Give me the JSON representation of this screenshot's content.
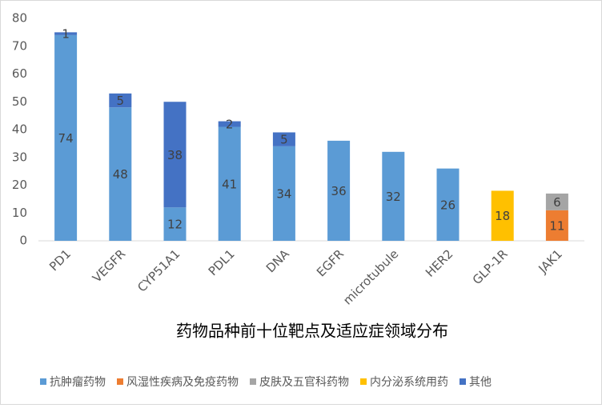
{
  "chart_data": {
    "type": "bar",
    "stacked": true,
    "title": "药物品种前十位靶点及适应症领域分布",
    "categories": [
      "PD1",
      "VEGFR",
      "CYP51A1",
      "PDL1",
      "DNA",
      "EGFR",
      "microtubule",
      "HER2",
      "GLP-1R",
      "JAK1"
    ],
    "series": [
      {
        "name": "抗肿瘤药物",
        "color": "#5b9bd5",
        "values": [
          74,
          48,
          12,
          41,
          34,
          36,
          32,
          26,
          null,
          null
        ]
      },
      {
        "name": "风湿性疾病及免疫药物",
        "color": "#ed7d31",
        "values": [
          null,
          null,
          null,
          null,
          null,
          null,
          null,
          null,
          null,
          11
        ]
      },
      {
        "name": "皮肤及五官科药物",
        "color": "#a5a5a5",
        "values": [
          null,
          null,
          null,
          null,
          null,
          null,
          null,
          null,
          null,
          6
        ]
      },
      {
        "name": "内分泌系统用药",
        "color": "#ffc000",
        "values": [
          null,
          null,
          null,
          null,
          null,
          null,
          null,
          null,
          18,
          null
        ]
      },
      {
        "name": "其他",
        "color": "#4472c4",
        "values": [
          1,
          5,
          38,
          2,
          5,
          null,
          null,
          null,
          null,
          null
        ]
      }
    ],
    "ylim": [
      0,
      80
    ],
    "yticks": [
      0,
      10,
      20,
      30,
      40,
      50,
      60,
      70,
      80
    ],
    "grid": false,
    "legend": "bottom"
  }
}
